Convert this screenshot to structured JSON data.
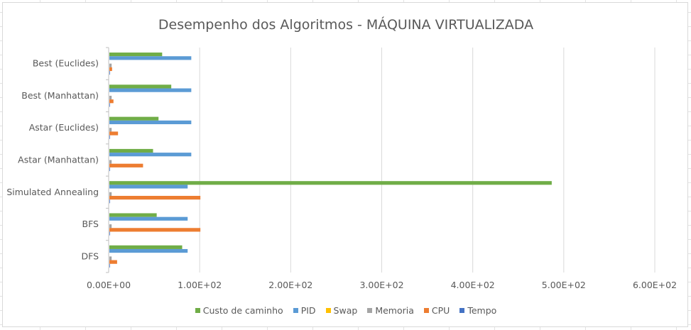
{
  "chart_data": {
    "type": "bar",
    "orientation": "horizontal",
    "title": "Desempenho dos Algoritmos - MÁQUINA VIRTUALIZADA",
    "categories": [
      "Best (Euclides)",
      "Best (Manhattan)",
      "Astar (Euclides)",
      "Astar (Manhattan)",
      "Simulated Annealing",
      "BFS",
      "DFS"
    ],
    "series": [
      {
        "name": "Custo de caminho",
        "color": "#70ad47",
        "values": [
          58,
          68,
          54,
          48,
          486,
          52,
          80
        ]
      },
      {
        "name": "PID",
        "color": "#5b9bd5",
        "values": [
          90,
          90,
          90,
          90,
          86,
          86,
          86
        ]
      },
      {
        "name": "Swap",
        "color": "#ffc000",
        "values": [
          0,
          0,
          0,
          0,
          0,
          0,
          0
        ]
      },
      {
        "name": "Memoria",
        "color": "#a5a5a5",
        "values": [
          2.5,
          2.5,
          2.5,
          2.5,
          2.5,
          2.5,
          2.5
        ]
      },
      {
        "name": "CPU",
        "color": "#ed7d31",
        "values": [
          3,
          4.5,
          9.5,
          37,
          100,
          100,
          8.5
        ]
      },
      {
        "name": "Tempo",
        "color": "#4472c4",
        "values": [
          0.1,
          0.1,
          0.1,
          0.1,
          0.1,
          0.1,
          0.1
        ]
      }
    ],
    "xlim": [
      0,
      600
    ],
    "xticks": [
      "0.00E+00",
      "1.00E+02",
      "2.00E+02",
      "3.00E+02",
      "4.00E+02",
      "5.00E+02",
      "6.00E+02"
    ],
    "grid": true,
    "legend_position": "bottom"
  }
}
